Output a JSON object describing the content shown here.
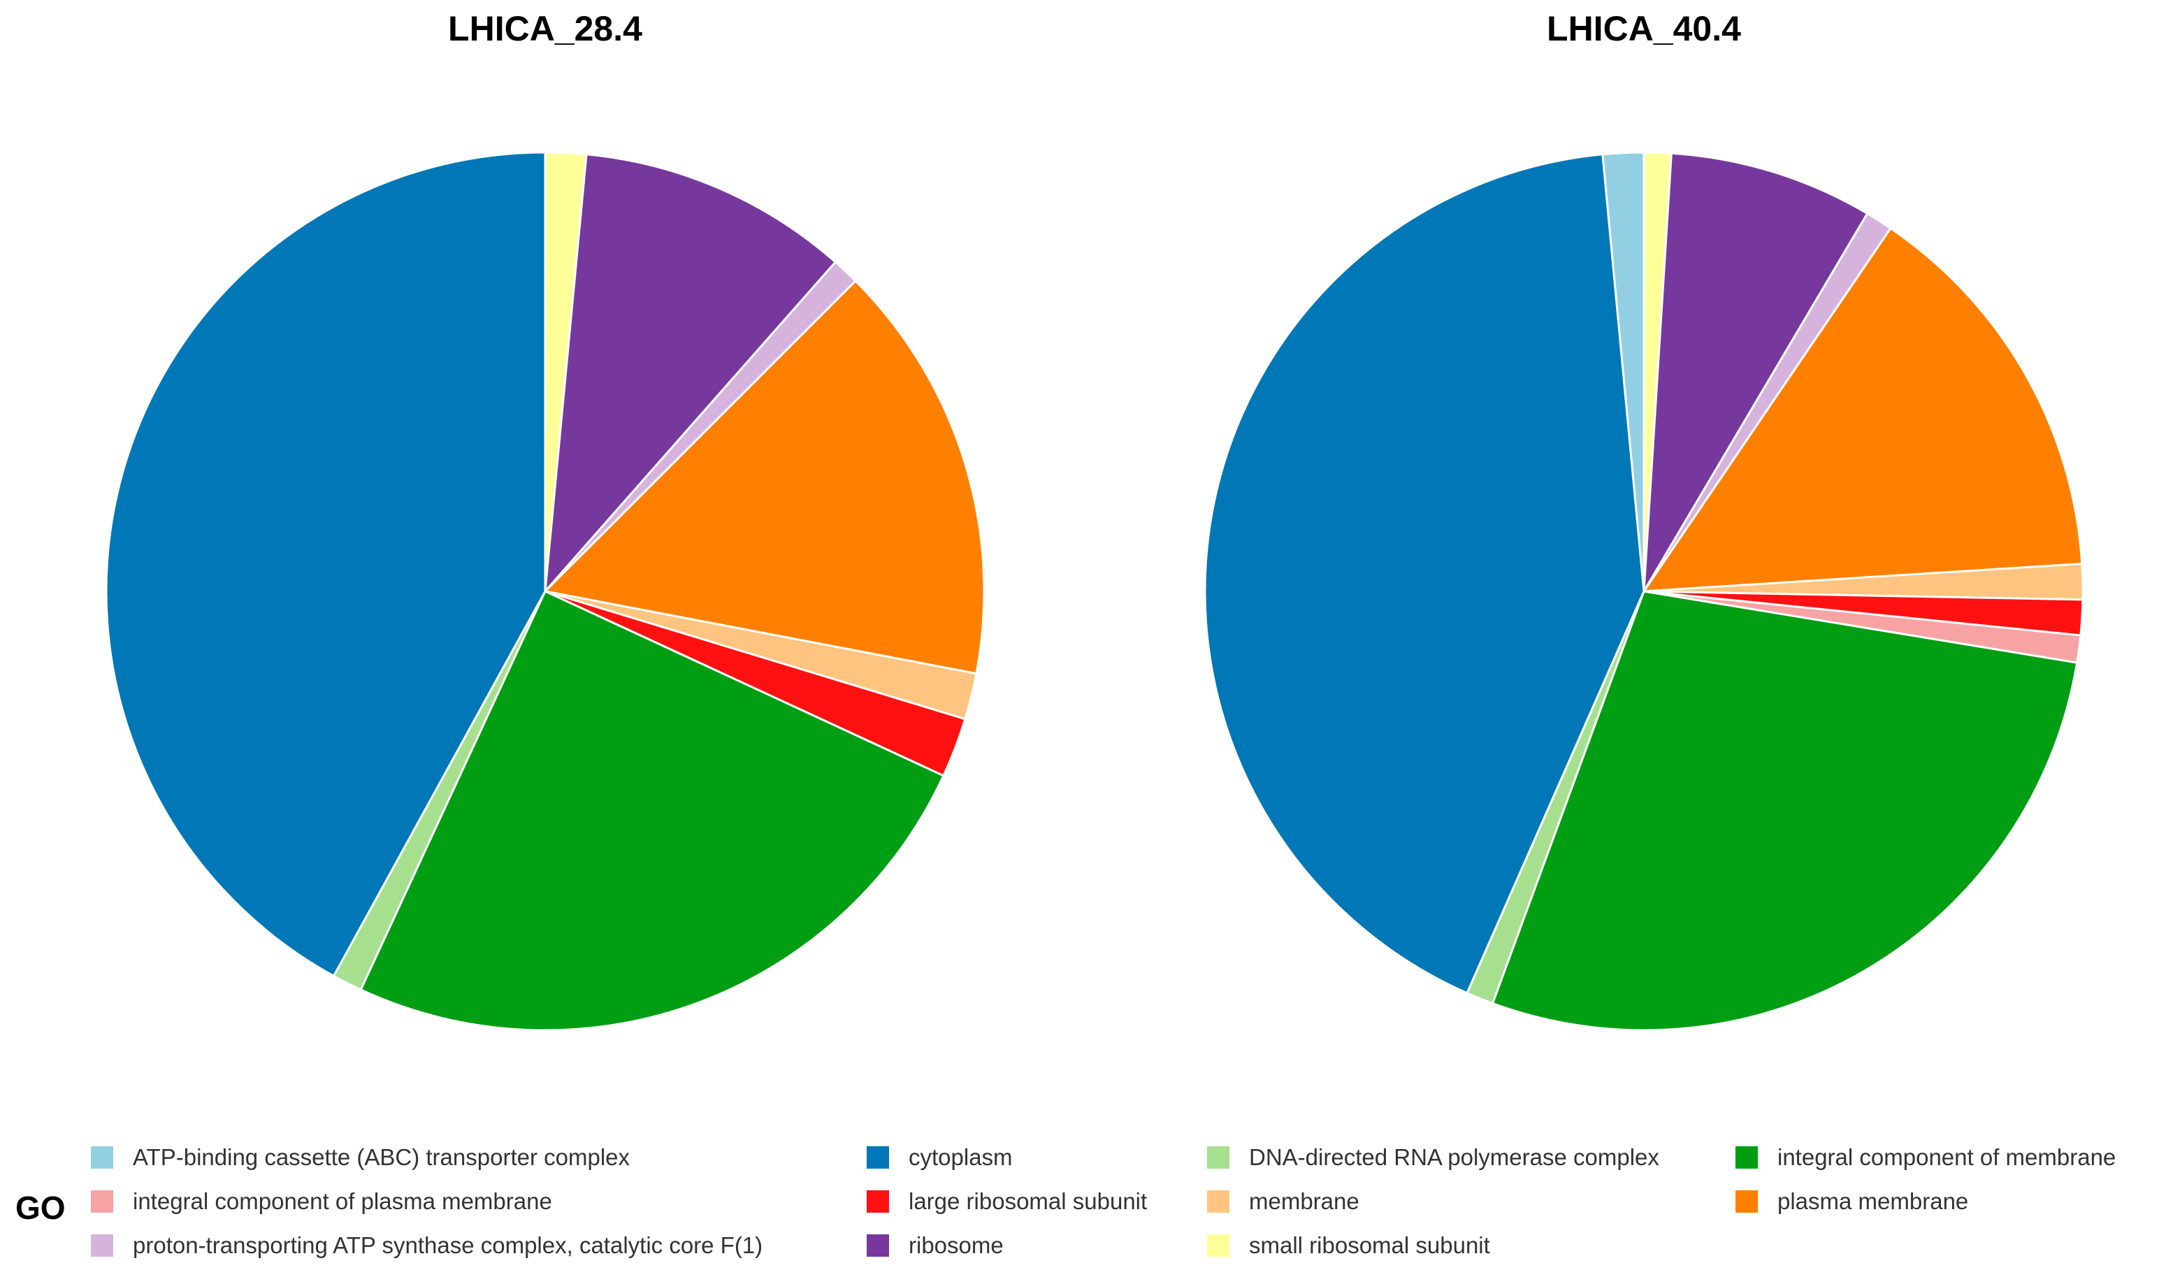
{
  "legend": {
    "title": "GO",
    "items": [
      {
        "label": "ATP-binding cassette (ABC) transporter complex",
        "color": "#92CFE3"
      },
      {
        "label": "cytoplasm",
        "color": "#0077B6"
      },
      {
        "label": "DNA-directed RNA polymerase complex",
        "color": "#A6E08F"
      },
      {
        "label": "integral component of membrane",
        "color": "#009E13"
      },
      {
        "label": "integral component of plasma membrane",
        "color": "#F8A3A3"
      },
      {
        "label": "large ribosomal subunit",
        "color": "#FF1111"
      },
      {
        "label": "membrane",
        "color": "#FFC47F"
      },
      {
        "label": "plasma membrane",
        "color": "#FF8000"
      },
      {
        "label": "proton-transporting ATP synthase complex, catalytic core F(1)",
        "color": "#D6B3DD"
      },
      {
        "label": "ribosome",
        "color": "#77389E"
      },
      {
        "label": "small ribosomal subunit",
        "color": "#FFFF99"
      }
    ]
  },
  "chart_data": [
    {
      "type": "pie",
      "title": "LHICA_28.4",
      "start": "12 o'clock",
      "direction": "clockwise",
      "slices": [
        {
          "label": "small ribosomal subunit",
          "value": 1.5,
          "color": "#FFFF99"
        },
        {
          "label": "ribosome",
          "value": 10.0,
          "color": "#77389E"
        },
        {
          "label": "proton-transporting ATP synthase complex, catalytic core F(1)",
          "value": 1.0,
          "color": "#D6B3DD"
        },
        {
          "label": "plasma membrane",
          "value": 15.5,
          "color": "#FF8000"
        },
        {
          "label": "membrane",
          "value": 1.7,
          "color": "#FFC47F"
        },
        {
          "label": "large ribosomal subunit",
          "value": 2.2,
          "color": "#FF1111"
        },
        {
          "label": "integral component of membrane",
          "value": 25.0,
          "color": "#009E13"
        },
        {
          "label": "DNA-directed RNA polymerase complex",
          "value": 1.1,
          "color": "#A6E08F"
        },
        {
          "label": "cytoplasm",
          "value": 42.0,
          "color": "#0077B6"
        }
      ]
    },
    {
      "type": "pie",
      "title": "LHICA_40.4",
      "start": "12 o'clock",
      "direction": "clockwise",
      "slices": [
        {
          "label": "small ribosomal subunit",
          "value": 1.0,
          "color": "#FFFF99"
        },
        {
          "label": "ribosome",
          "value": 7.5,
          "color": "#77389E"
        },
        {
          "label": "proton-transporting ATP synthase complex, catalytic core F(1)",
          "value": 1.0,
          "color": "#D6B3DD"
        },
        {
          "label": "plasma membrane",
          "value": 14.5,
          "color": "#FF8000"
        },
        {
          "label": "membrane",
          "value": 1.3,
          "color": "#FFC47F"
        },
        {
          "label": "large ribosomal subunit",
          "value": 1.3,
          "color": "#FF1111"
        },
        {
          "label": "integral component of plasma membrane",
          "value": 1.0,
          "color": "#F8A3A3"
        },
        {
          "label": "integral component of membrane",
          "value": 28.0,
          "color": "#009E13"
        },
        {
          "label": "DNA-directed RNA polymerase complex",
          "value": 1.0,
          "color": "#A6E08F"
        },
        {
          "label": "cytoplasm",
          "value": 41.9,
          "color": "#0077B6"
        },
        {
          "label": "ATP-binding cassette (ABC) transporter complex",
          "value": 1.5,
          "color": "#92CFE3"
        }
      ]
    }
  ]
}
